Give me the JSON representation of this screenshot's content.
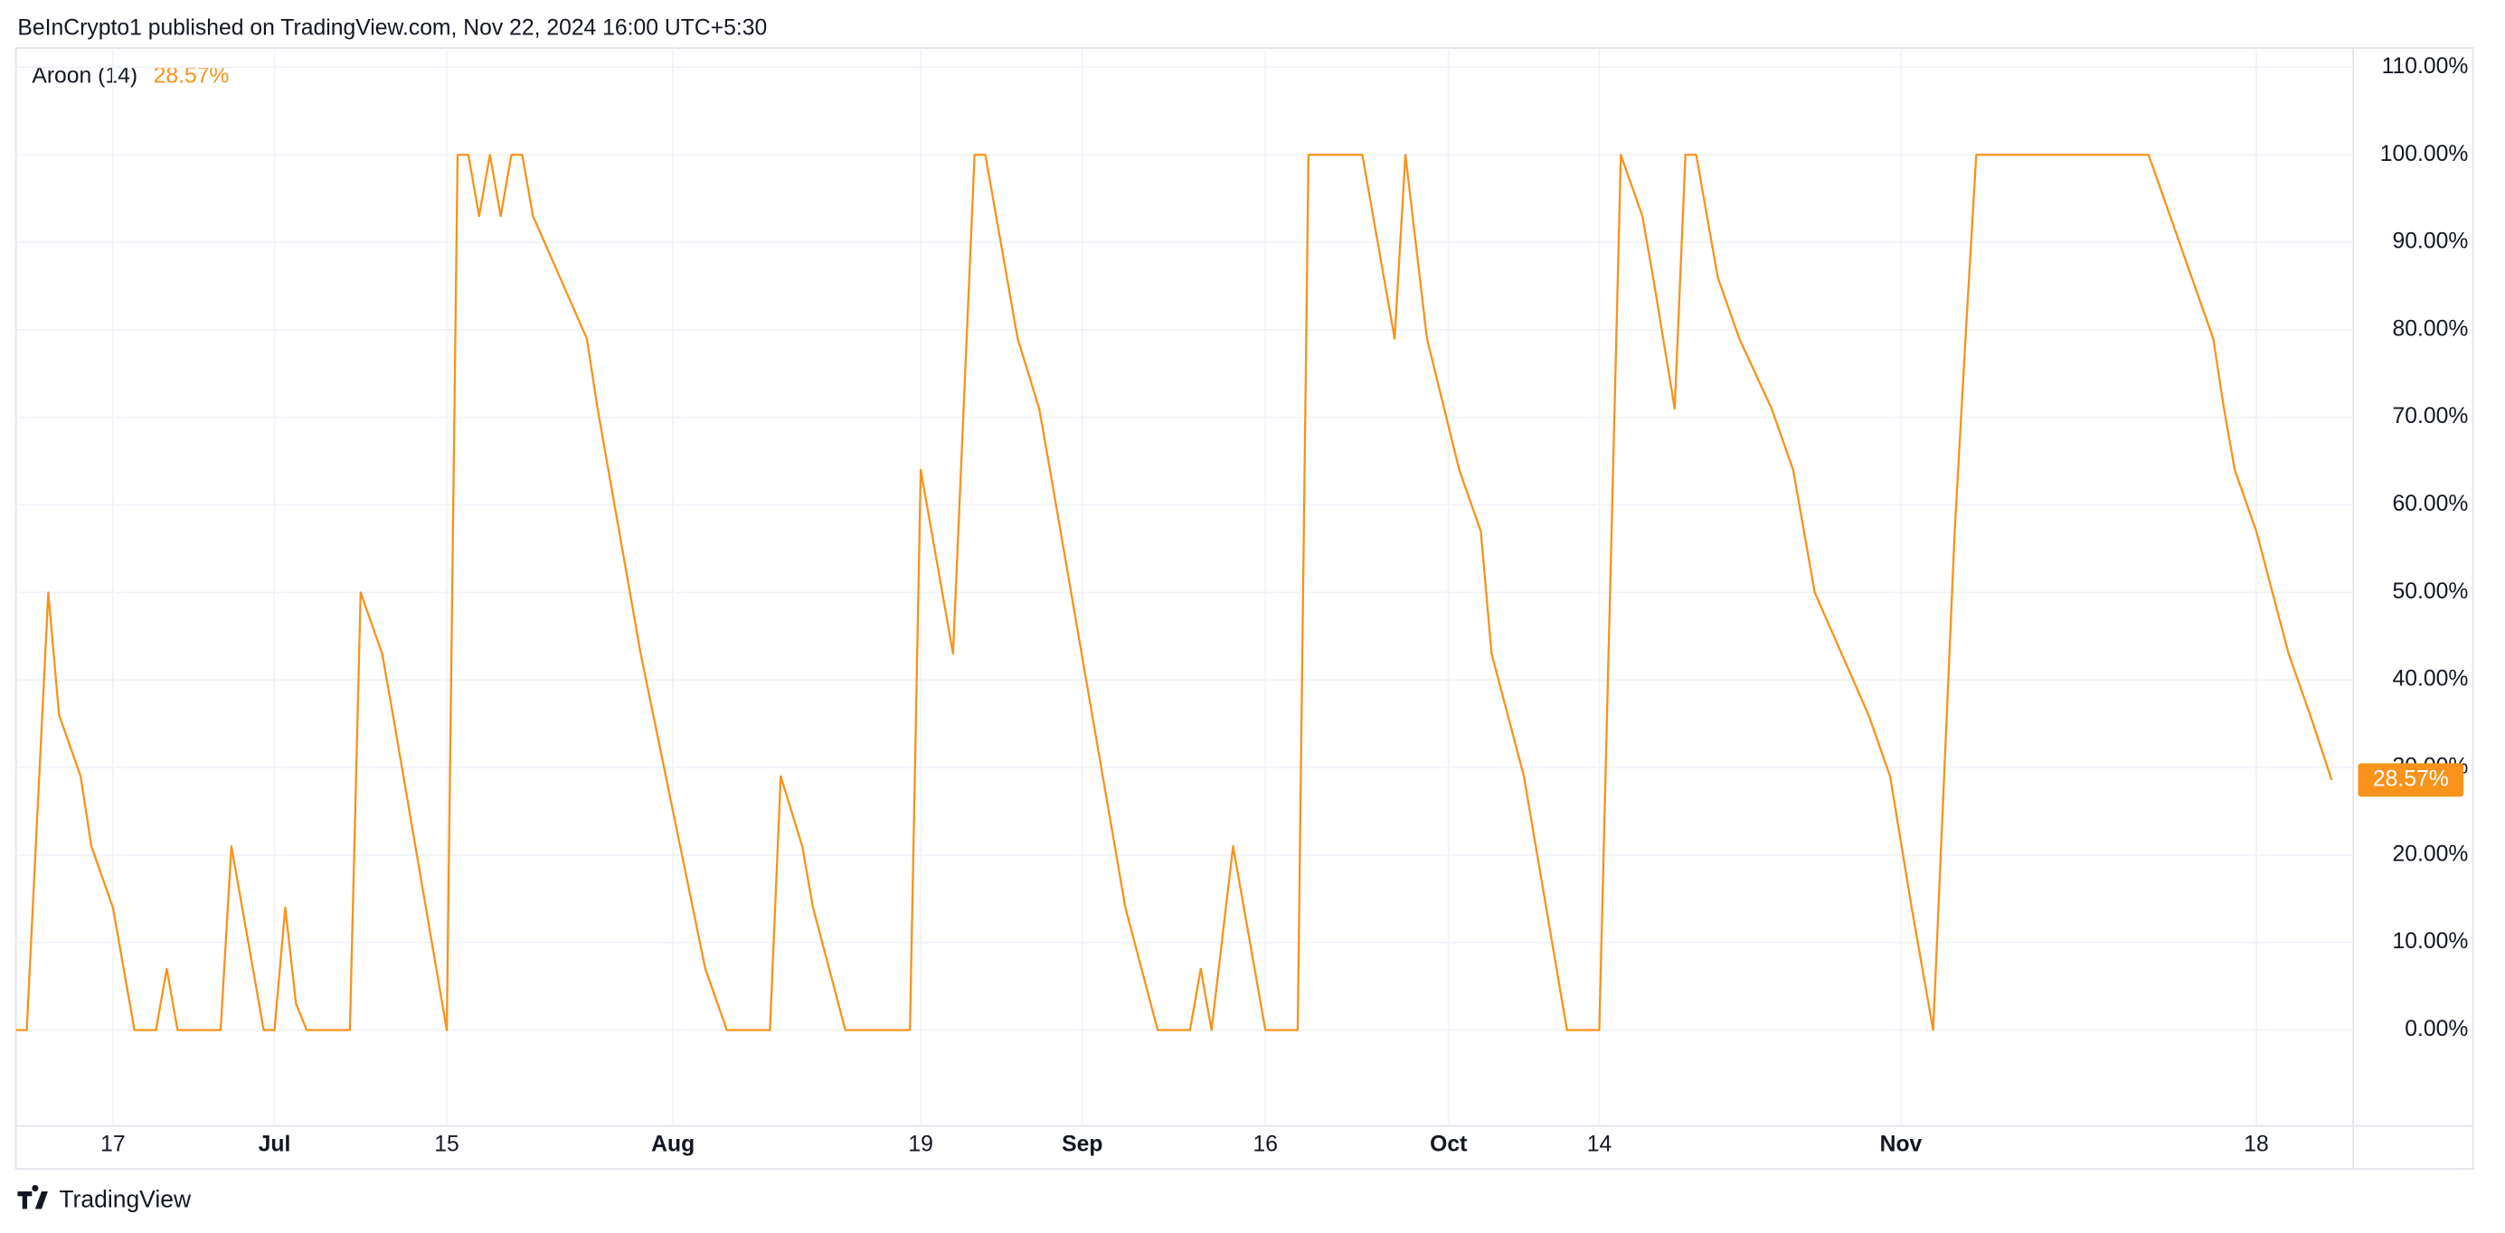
{
  "header": "BeInCrypto1 published on TradingView.com, Nov 22, 2024 16:00 UTC+5:30",
  "footer": "TradingView",
  "chart_data": {
    "type": "line",
    "last_value_label": "28.57%",
    "series": [
      {
        "name": "Aroon (14)",
        "color": "#f7931a",
        "x": [
          0,
          1,
          3,
          4,
          6,
          7,
          9,
          10,
          11,
          13,
          14,
          15,
          19,
          20,
          22,
          23,
          24,
          25,
          26,
          27,
          31,
          32,
          34,
          35,
          40,
          41,
          42,
          43,
          44,
          45,
          46,
          47,
          48,
          53,
          54,
          58,
          64,
          66,
          70,
          71,
          73,
          74,
          77,
          83,
          84,
          85,
          87,
          89,
          90,
          92,
          93,
          95,
          96,
          103,
          106,
          109,
          110,
          111,
          113,
          114,
          115,
          116,
          119,
          120,
          125,
          126,
          128,
          129,
          131,
          134,
          136,
          137,
          140,
          144,
          147,
          149,
          151,
          152,
          154,
          155,
          156,
          157,
          158,
          160,
          163,
          165,
          166,
          167,
          172,
          174,
          176,
          177,
          178,
          180,
          181,
          182,
          198,
          200,
          202,
          204,
          205,
          206,
          208,
          211,
          213,
          215
        ],
        "values": [
          0,
          0,
          50,
          36,
          29,
          21,
          14,
          7,
          0,
          0,
          7,
          0,
          0,
          21,
          7,
          0,
          0,
          14,
          3,
          0,
          0,
          50,
          43,
          36,
          0,
          100,
          100,
          93,
          100,
          93,
          100,
          100,
          93,
          79,
          71,
          43,
          7,
          0,
          0,
          29,
          21,
          14,
          0,
          0,
          64,
          57,
          43,
          100,
          100,
          86,
          79,
          71,
          64,
          14,
          0,
          0,
          7,
          0,
          21,
          14,
          7,
          0,
          0,
          100,
          100,
          93,
          79,
          100,
          79,
          64,
          57,
          43,
          29,
          0,
          0,
          100,
          93,
          86,
          71,
          100,
          100,
          93,
          86,
          79,
          71,
          64,
          57,
          50,
          36,
          29,
          14,
          7,
          0,
          57,
          79,
          100,
          100,
          93,
          86,
          79,
          71,
          64,
          57,
          43,
          36,
          28.57
        ]
      }
    ],
    "xlim": [
      0,
      217
    ],
    "xticks": [
      {
        "value": 9,
        "label": "17"
      },
      {
        "value": 24,
        "label": "Jul"
      },
      {
        "value": 40,
        "label": "15"
      },
      {
        "value": 61,
        "label": "Aug"
      },
      {
        "value": 84,
        "label": "19"
      },
      {
        "value": 99,
        "label": "Sep"
      },
      {
        "value": 116,
        "label": "16"
      },
      {
        "value": 133,
        "label": "Oct"
      },
      {
        "value": 147,
        "label": "14"
      },
      {
        "value": 175,
        "label": "Nov"
      },
      {
        "value": 208,
        "label": "18"
      }
    ],
    "ylim": [
      -10.95,
      112.2
    ],
    "yticks": [
      {
        "value": 0,
        "label": "0.00%"
      },
      {
        "value": 10,
        "label": "10.00%"
      },
      {
        "value": 20,
        "label": "20.00%"
      },
      {
        "value": 30,
        "label": "30.00%"
      },
      {
        "value": 40,
        "label": "40.00%"
      },
      {
        "value": 50,
        "label": "50.00%"
      },
      {
        "value": 60,
        "label": "60.00%"
      },
      {
        "value": 70,
        "label": "70.00%"
      },
      {
        "value": 80,
        "label": "80.00%"
      },
      {
        "value": 90,
        "label": "90.00%"
      },
      {
        "value": 100,
        "label": "100.00%"
      },
      {
        "value": 110,
        "label": "110.00%"
      }
    ],
    "grid": true
  }
}
